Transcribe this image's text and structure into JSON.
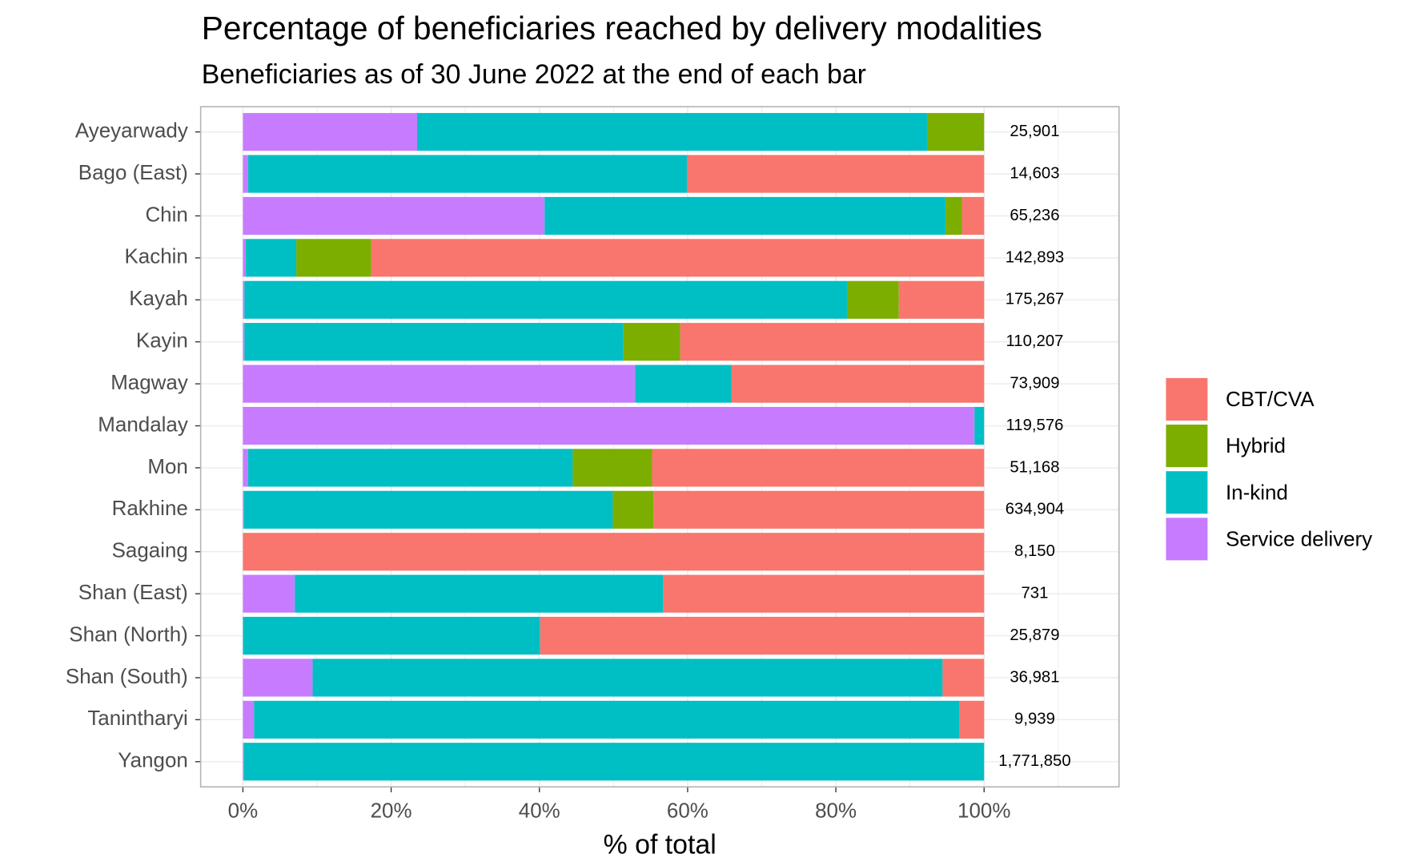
{
  "chart_data": {
    "type": "stacked-bar-horizontal",
    "title": "Percentage of beneficiaries reached by delivery modalities",
    "subtitle": "Beneficiaries as of 30 June 2022 at the end of each bar",
    "x_label": "% of total",
    "categories": [
      "Ayeyarwady",
      "Bago (East)",
      "Chin",
      "Kachin",
      "Kayah",
      "Kayin",
      "Magway",
      "Mandalay",
      "Mon",
      "Rakhine",
      "Sagaing",
      "Shan (East)",
      "Shan (North)",
      "Shan (South)",
      "Tanintharyi",
      "Yangon"
    ],
    "series": [
      {
        "name": "CBT/CVA",
        "color": "#F8766D",
        "values": [
          0,
          40.1,
          3.0,
          82.7,
          11.5,
          41.0,
          34.1,
          0,
          44.8,
          44.6,
          100,
          43.3,
          59.9,
          5.6,
          3.3,
          0
        ]
      },
      {
        "name": "Hybrid",
        "color": "#7CAE00",
        "values": [
          7.7,
          0,
          2.2,
          10.1,
          7.0,
          7.7,
          0,
          0,
          10.7,
          5.5,
          0,
          0,
          0,
          0,
          0,
          0
        ]
      },
      {
        "name": "In-kind",
        "color": "#00BFC4",
        "values": [
          68.8,
          59.2,
          54.1,
          6.8,
          81.3,
          51.1,
          13.0,
          1.3,
          43.8,
          49.8,
          0,
          49.7,
          40.1,
          85.0,
          95.2,
          99.9
        ]
      },
      {
        "name": "Service delivery",
        "color": "#C77CFF",
        "values": [
          23.5,
          0.7,
          40.7,
          0.4,
          0.2,
          0.2,
          52.9,
          98.7,
          0.7,
          0.1,
          0,
          7.0,
          0,
          9.4,
          1.5,
          0.1
        ]
      }
    ],
    "totals": {
      "values": [
        25901,
        14603,
        65236,
        142893,
        175267,
        110207,
        73909,
        119576,
        51168,
        634904,
        8150,
        731,
        25879,
        36981,
        9939,
        1771850
      ],
      "value_labels": [
        "25,901",
        "14,603",
        "65,236",
        "142,893",
        "175,267",
        "110,207",
        "73,909",
        "119,576",
        "51,168",
        "634,904",
        "8,150",
        "731",
        "25,879",
        "36,981",
        "9,939",
        "1,771,850"
      ]
    },
    "xlim": [
      -5.7,
      118.2
    ],
    "xticks": [
      {
        "value": 0,
        "label": "0%"
      },
      {
        "value": 20,
        "label": "20%"
      },
      {
        "value": 40,
        "label": "40%"
      },
      {
        "value": 60,
        "label": "60%"
      },
      {
        "value": 80,
        "label": "80%"
      },
      {
        "value": 100,
        "label": "100%"
      }
    ],
    "xminorticks": [
      10,
      30,
      50,
      70,
      90,
      110
    ],
    "grid": true,
    "legend": "right"
  }
}
